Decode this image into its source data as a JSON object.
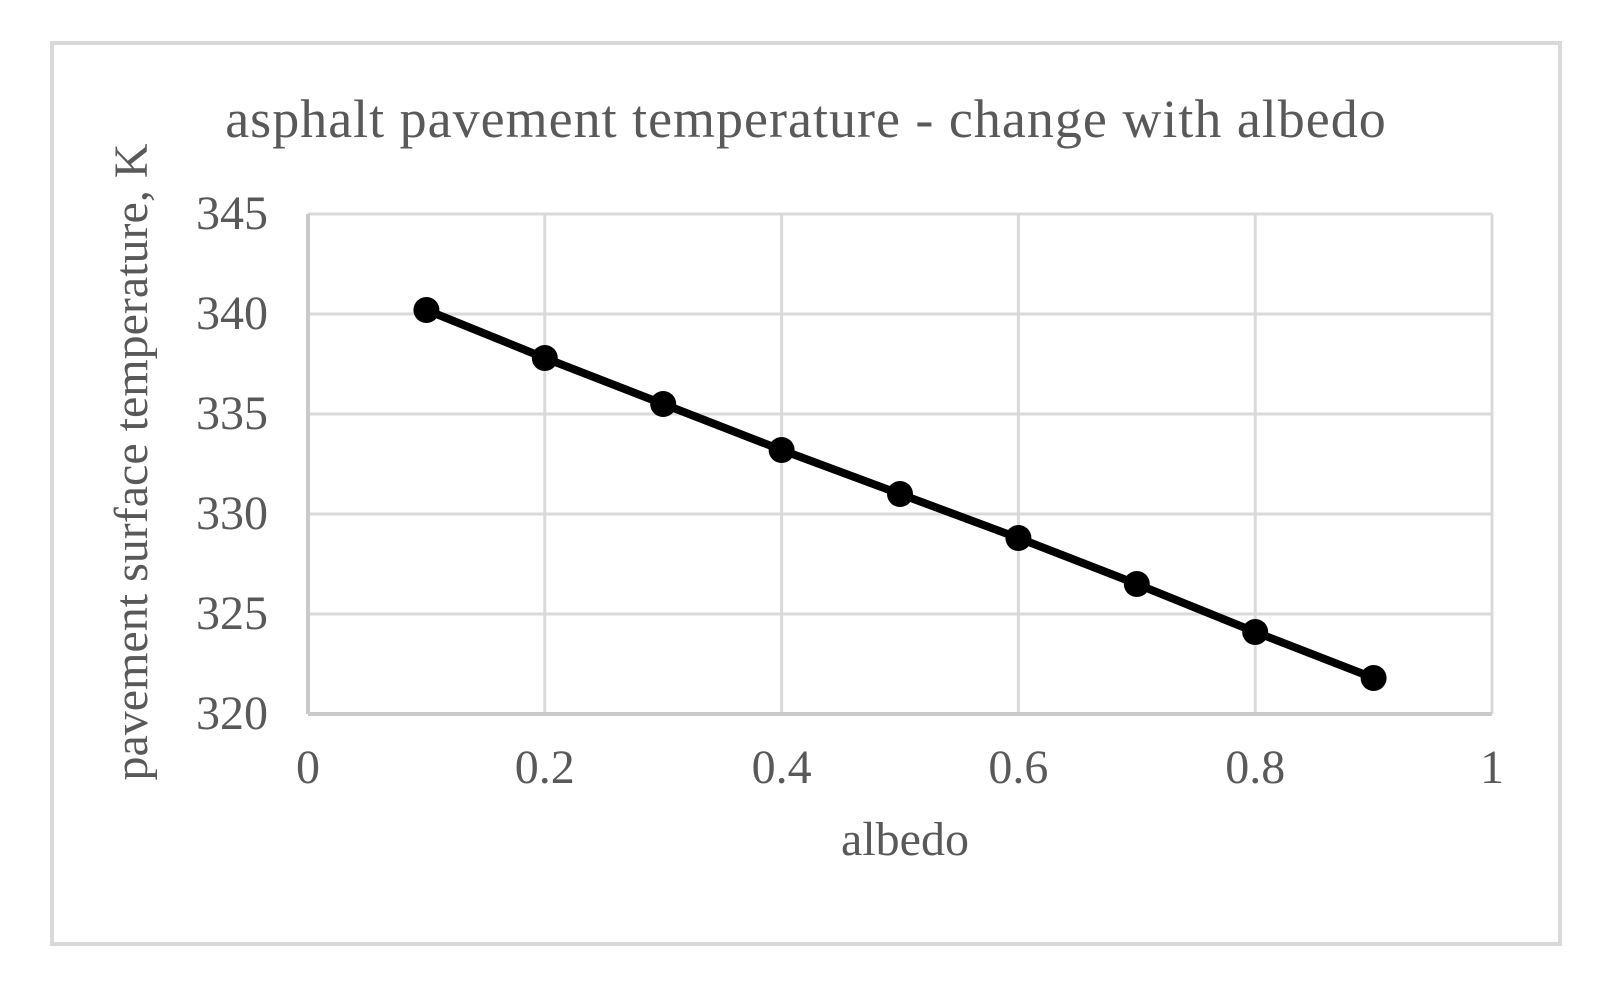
{
  "chart_data": {
    "type": "line",
    "title": "asphalt pavement temperature - change with albedo",
    "xlabel": "albedo",
    "ylabel": "pavement surface temperature, K",
    "xlim": [
      0,
      1
    ],
    "ylim": [
      320,
      345
    ],
    "grid": true,
    "legend": "none",
    "x_ticks": [
      {
        "value": 0,
        "label": "0"
      },
      {
        "value": 0.2,
        "label": "0.2"
      },
      {
        "value": 0.4,
        "label": "0.4"
      },
      {
        "value": 0.6,
        "label": "0.6"
      },
      {
        "value": 0.8,
        "label": "0.8"
      },
      {
        "value": 1,
        "label": "1"
      }
    ],
    "y_ticks": [
      {
        "value": 345,
        "label": "345"
      },
      {
        "value": 340,
        "label": "340"
      },
      {
        "value": 335,
        "label": "335"
      },
      {
        "value": 330,
        "label": "330"
      },
      {
        "value": 325,
        "label": "325"
      },
      {
        "value": 320,
        "label": "320"
      }
    ],
    "series": [
      {
        "name": "pavement surface temperature",
        "marker": "circle",
        "x": [
          0.1,
          0.2,
          0.3,
          0.4,
          0.5,
          0.6,
          0.7,
          0.8,
          0.9
        ],
        "y": [
          340.2,
          337.8,
          335.5,
          333.2,
          331.0,
          328.8,
          326.5,
          324.1,
          321.8
        ]
      }
    ],
    "colors": {
      "series": "#000000",
      "marker": "#000000",
      "gridline": "#d9d9d9",
      "axis_line": "#c9c9c9",
      "text": "#595959",
      "frame_border": "#d9d9d9",
      "background": "#ffffff"
    }
  }
}
